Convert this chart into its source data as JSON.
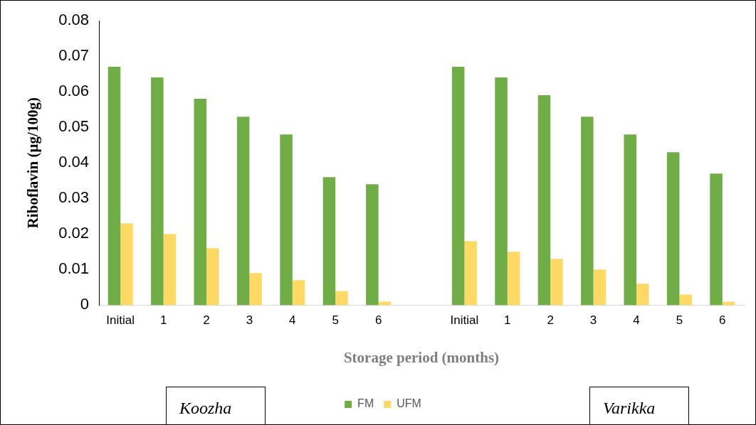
{
  "chart_data": {
    "type": "bar",
    "xlabel": "Storage period (months)",
    "ylabel": "Riboflavin (µg/100g)",
    "categories": [
      "Initial",
      "1",
      "2",
      "3",
      "4",
      "5",
      "6",
      null,
      "Initial",
      "1",
      "2",
      "3",
      "4",
      "5",
      "6"
    ],
    "series": [
      {
        "name": "FM",
        "color": "#70ad47",
        "values": [
          0.067,
          0.064,
          0.058,
          0.053,
          0.048,
          0.036,
          0.034,
          null,
          0.067,
          0.064,
          0.059,
          0.053,
          0.048,
          0.043,
          0.037
        ]
      },
      {
        "name": "UFM",
        "color": "#ffd966",
        "values": [
          0.023,
          0.02,
          0.016,
          0.009,
          0.007,
          0.004,
          0.001,
          null,
          0.018,
          0.015,
          0.013,
          0.01,
          0.006,
          0.003,
          0.001
        ]
      }
    ],
    "ylim": [
      0,
      0.08
    ],
    "yticks": [
      0,
      0.01,
      0.02,
      0.03,
      0.04,
      0.05,
      0.06,
      0.07,
      0.08
    ],
    "grid": false,
    "legend": "bottom",
    "annotations": [
      "Koozha",
      "Varikka"
    ]
  }
}
